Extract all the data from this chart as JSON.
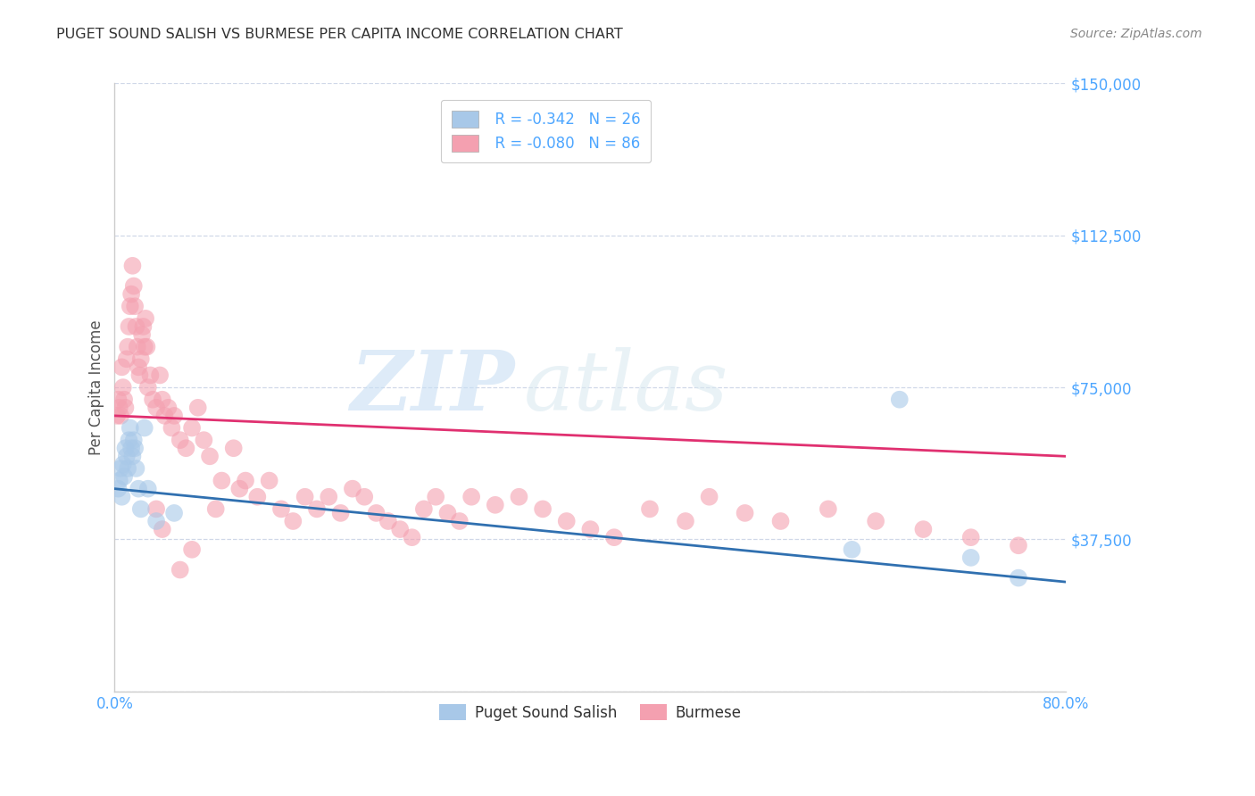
{
  "title": "PUGET SOUND SALISH VS BURMESE PER CAPITA INCOME CORRELATION CHART",
  "source": "Source: ZipAtlas.com",
  "ylabel": "Per Capita Income",
  "xlim": [
    0.0,
    0.8
  ],
  "ylim": [
    0,
    150000
  ],
  "yticks": [
    0,
    37500,
    75000,
    112500,
    150000
  ],
  "ytick_labels": [
    "",
    "$37,500",
    "$75,000",
    "$112,500",
    "$150,000"
  ],
  "xticks": [
    0.0,
    0.1,
    0.2,
    0.3,
    0.4,
    0.5,
    0.6,
    0.7,
    0.8
  ],
  "blue_color": "#a8c8e8",
  "pink_color": "#f4a0b0",
  "blue_line_color": "#3070b0",
  "pink_line_color": "#e03070",
  "legend_r_blue": "-0.342",
  "legend_n_blue": "26",
  "legend_r_pink": "-0.080",
  "legend_n_pink": "86",
  "blue_scatter_x": [
    0.003,
    0.004,
    0.005,
    0.006,
    0.007,
    0.008,
    0.009,
    0.01,
    0.011,
    0.012,
    0.013,
    0.014,
    0.015,
    0.016,
    0.017,
    0.018,
    0.02,
    0.022,
    0.025,
    0.028,
    0.035,
    0.05,
    0.62,
    0.66,
    0.72,
    0.76
  ],
  "blue_scatter_y": [
    50000,
    52000,
    55000,
    48000,
    56000,
    53000,
    60000,
    58000,
    55000,
    62000,
    65000,
    60000,
    58000,
    62000,
    60000,
    55000,
    50000,
    45000,
    65000,
    50000,
    42000,
    44000,
    35000,
    72000,
    33000,
    28000
  ],
  "pink_scatter_x": [
    0.002,
    0.003,
    0.004,
    0.005,
    0.006,
    0.007,
    0.008,
    0.009,
    0.01,
    0.011,
    0.012,
    0.013,
    0.014,
    0.015,
    0.016,
    0.017,
    0.018,
    0.019,
    0.02,
    0.021,
    0.022,
    0.023,
    0.024,
    0.025,
    0.026,
    0.027,
    0.028,
    0.03,
    0.032,
    0.035,
    0.038,
    0.04,
    0.042,
    0.045,
    0.048,
    0.05,
    0.055,
    0.06,
    0.065,
    0.07,
    0.075,
    0.08,
    0.09,
    0.1,
    0.11,
    0.12,
    0.13,
    0.14,
    0.15,
    0.16,
    0.17,
    0.18,
    0.19,
    0.2,
    0.21,
    0.22,
    0.23,
    0.24,
    0.25,
    0.26,
    0.27,
    0.28,
    0.29,
    0.3,
    0.32,
    0.34,
    0.36,
    0.38,
    0.4,
    0.42,
    0.45,
    0.48,
    0.5,
    0.53,
    0.56,
    0.6,
    0.64,
    0.68,
    0.72,
    0.76,
    0.035,
    0.04,
    0.055,
    0.065,
    0.085,
    0.105
  ],
  "pink_scatter_y": [
    68000,
    72000,
    70000,
    68000,
    80000,
    75000,
    72000,
    70000,
    82000,
    85000,
    90000,
    95000,
    98000,
    105000,
    100000,
    95000,
    90000,
    85000,
    80000,
    78000,
    82000,
    88000,
    90000,
    85000,
    92000,
    85000,
    75000,
    78000,
    72000,
    70000,
    78000,
    72000,
    68000,
    70000,
    65000,
    68000,
    62000,
    60000,
    65000,
    70000,
    62000,
    58000,
    52000,
    60000,
    52000,
    48000,
    52000,
    45000,
    42000,
    48000,
    45000,
    48000,
    44000,
    50000,
    48000,
    44000,
    42000,
    40000,
    38000,
    45000,
    48000,
    44000,
    42000,
    48000,
    46000,
    48000,
    45000,
    42000,
    40000,
    38000,
    45000,
    42000,
    48000,
    44000,
    42000,
    45000,
    42000,
    40000,
    38000,
    36000,
    45000,
    40000,
    30000,
    35000,
    45000,
    50000
  ],
  "watermark_zip": "ZIP",
  "watermark_atlas": "atlas",
  "background_color": "#ffffff",
  "grid_color": "#d0d8e8",
  "axis_color": "#cccccc",
  "title_color": "#333333",
  "ylabel_color": "#555555",
  "tick_label_color": "#4da6ff",
  "legend_text_color": "#333333",
  "legend_value_color": "#4da6ff"
}
